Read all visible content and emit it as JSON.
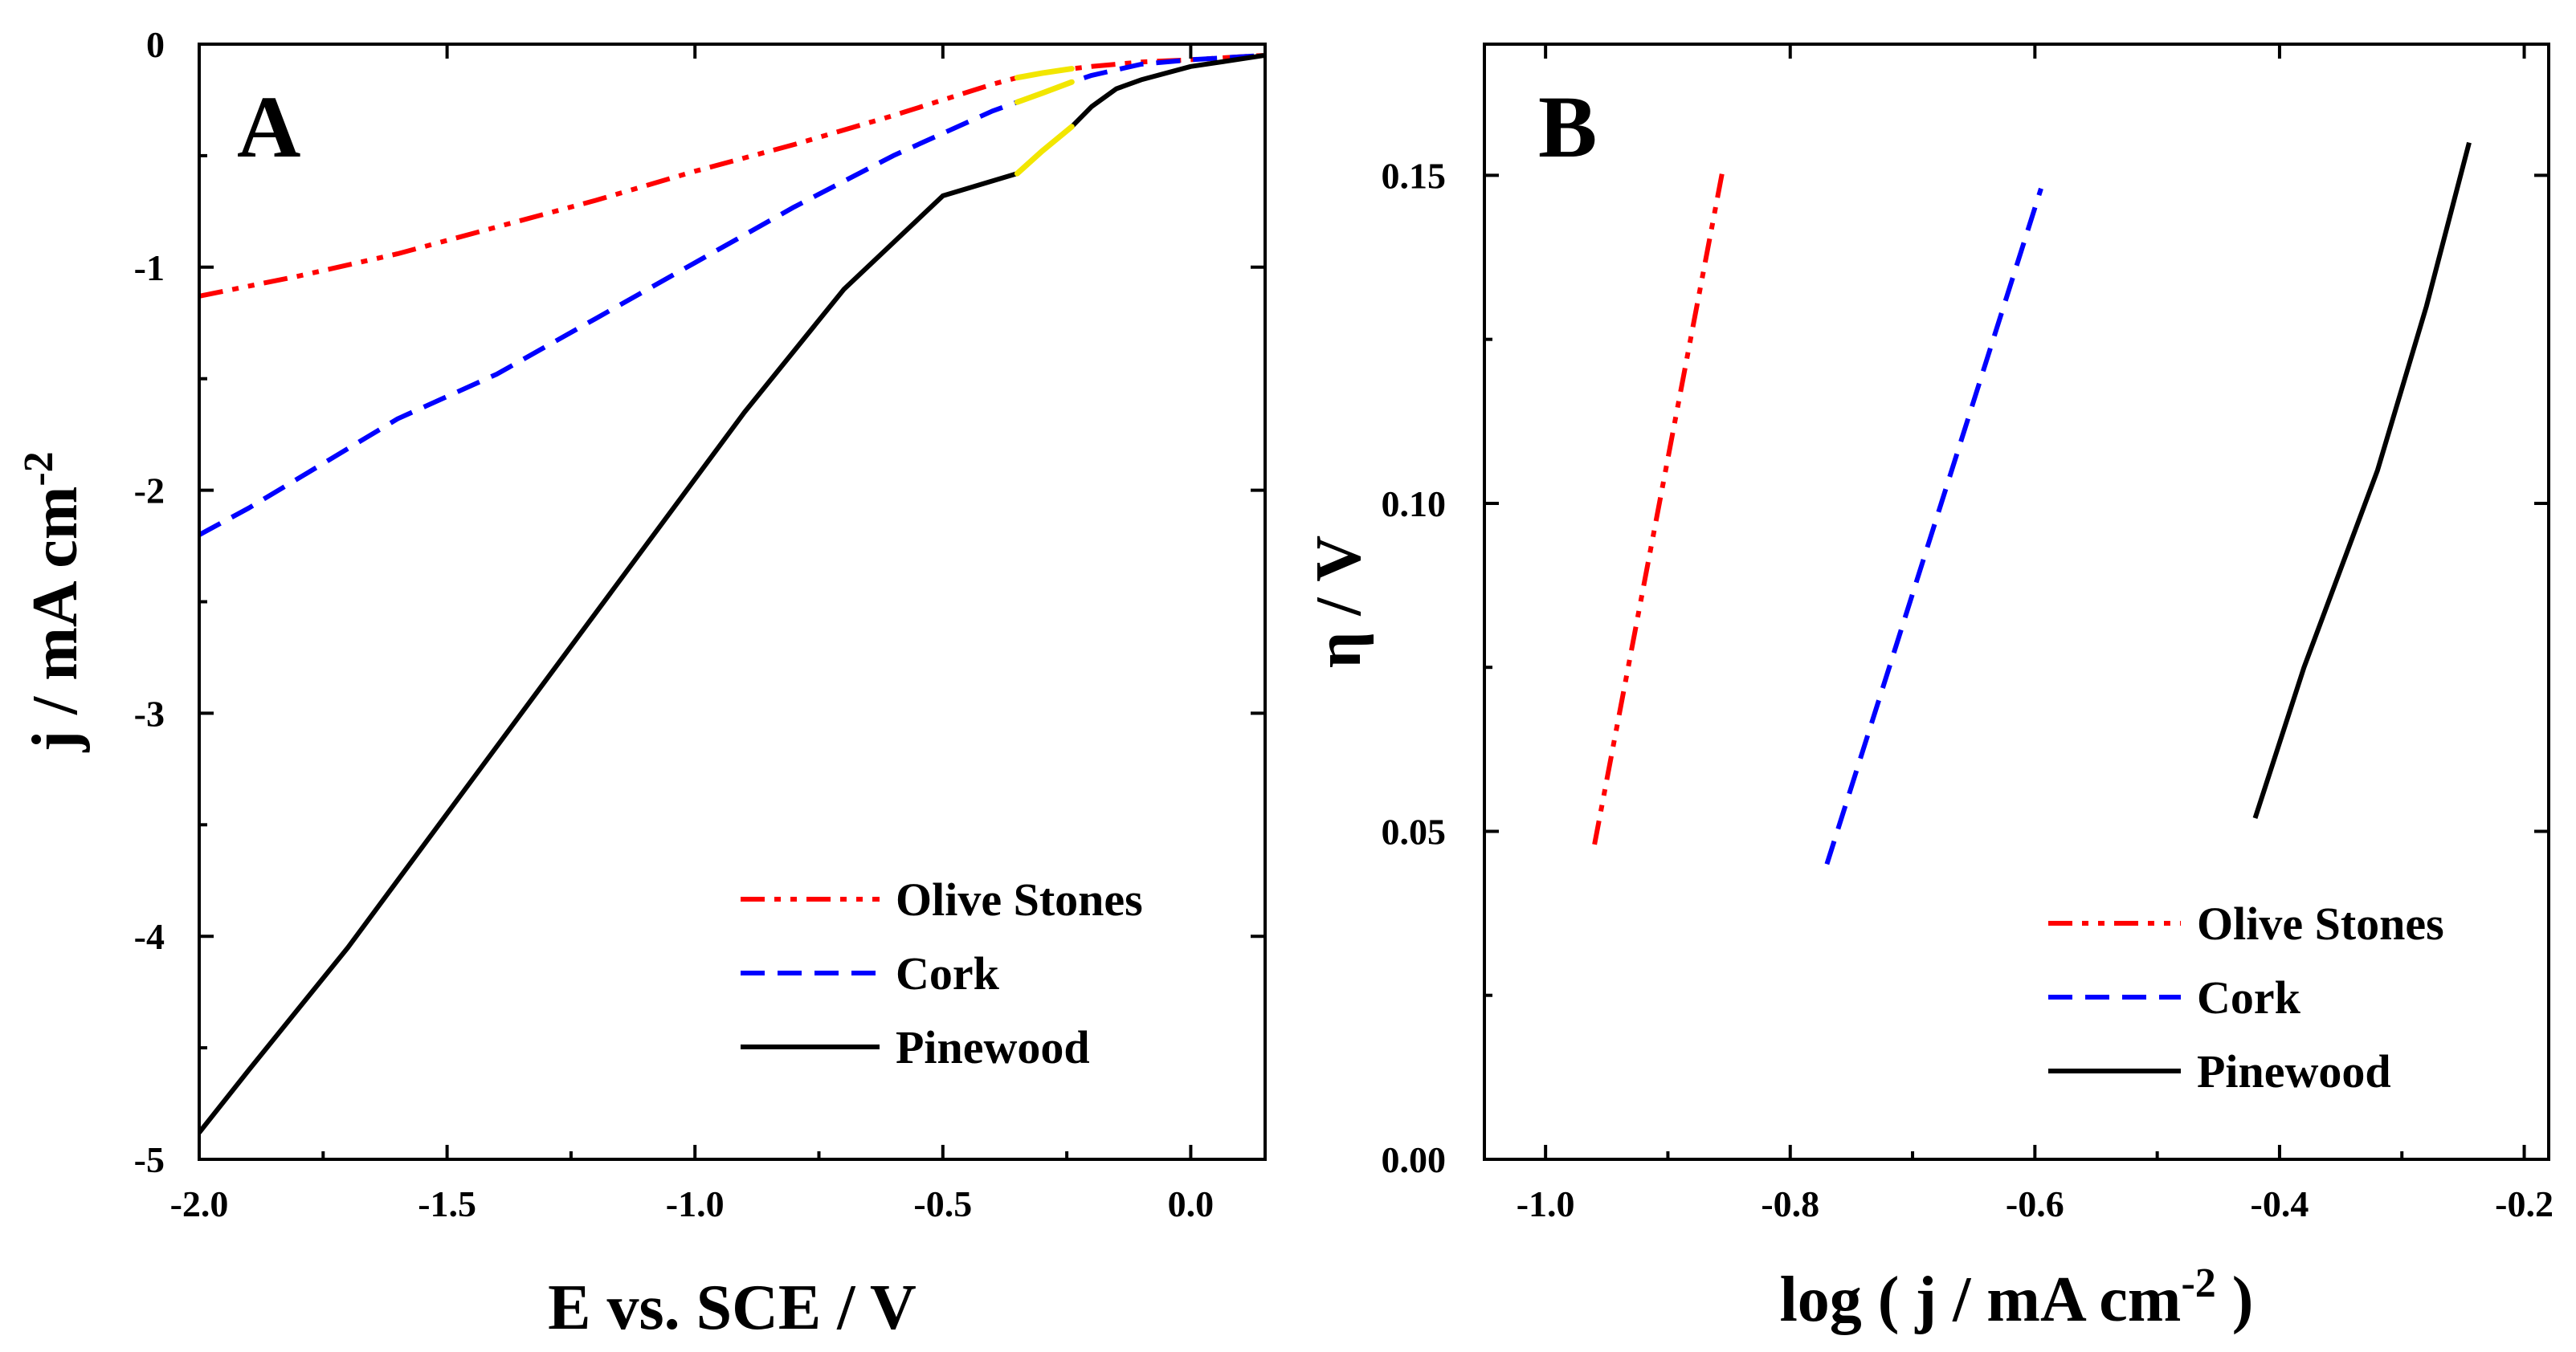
{
  "chart_data": [
    {
      "panel": "A",
      "type": "line",
      "panel_label": "A",
      "xlabel": "E vs. SCE / V",
      "ylabel": {
        "main": "j / mA cm",
        "sup": "-2"
      },
      "xlim": [
        -2.0,
        0.15
      ],
      "ylim": [
        -5,
        0
      ],
      "xticks": [
        -2.0,
        -1.5,
        -1.0,
        -0.5,
        0.0
      ],
      "xtick_labels": [
        "-2.0",
        "-1.5",
        "-1.0",
        "-0.5",
        "0.0"
      ],
      "yticks": [
        0,
        -1,
        -2,
        -3,
        -4,
        -5
      ],
      "ytick_labels": [
        "0",
        "-1",
        "-2",
        "-3",
        "-4",
        "-5"
      ],
      "legend_position": "bottom-right",
      "highlight": {
        "color": "#f2e600",
        "x_range": [
          -0.35,
          -0.24
        ]
      },
      "series": [
        {
          "name": "Olive Stones",
          "color": "#ff0000",
          "style": "dash-dot-dot",
          "x": [
            -2.0,
            -1.8,
            -1.6,
            -1.4,
            -1.2,
            -1.0,
            -0.8,
            -0.6,
            -0.5,
            -0.4,
            -0.35,
            -0.3,
            -0.24,
            -0.2,
            -0.1,
            0.0,
            0.15
          ],
          "y": [
            -1.13,
            -1.04,
            -0.94,
            -0.82,
            -0.7,
            -0.57,
            -0.45,
            -0.32,
            -0.25,
            -0.18,
            -0.15,
            -0.13,
            -0.11,
            -0.1,
            -0.08,
            -0.07,
            -0.05
          ]
        },
        {
          "name": "Cork",
          "color": "#0000ff",
          "style": "dashed",
          "x": [
            -2.0,
            -1.9,
            -1.75,
            -1.6,
            -1.4,
            -1.2,
            -1.0,
            -0.8,
            -0.6,
            -0.5,
            -0.4,
            -0.35,
            -0.3,
            -0.24,
            -0.2,
            -0.1,
            0.0,
            0.15
          ],
          "y": [
            -2.2,
            -2.08,
            -1.88,
            -1.68,
            -1.48,
            -1.23,
            -0.98,
            -0.73,
            -0.5,
            -0.4,
            -0.3,
            -0.26,
            -0.22,
            -0.17,
            -0.14,
            -0.09,
            -0.07,
            -0.05
          ]
        },
        {
          "name": "Pinewood",
          "color": "#000000",
          "style": "solid",
          "x": [
            -2.0,
            -1.9,
            -1.7,
            -1.5,
            -1.3,
            -1.1,
            -0.9,
            -0.7,
            -0.5,
            -0.35,
            -0.3,
            -0.24,
            -0.2,
            -0.15,
            -0.1,
            0.0,
            0.15
          ],
          "y": [
            -4.88,
            -4.6,
            -4.05,
            -3.45,
            -2.85,
            -2.25,
            -1.65,
            -1.1,
            -0.68,
            -0.58,
            -0.48,
            -0.37,
            -0.28,
            -0.2,
            -0.16,
            -0.1,
            -0.05
          ]
        }
      ]
    },
    {
      "panel": "B",
      "type": "line",
      "panel_label": "B",
      "xlabel": {
        "main": "log ( j / mA cm",
        "sup": "-2",
        "end": " )"
      },
      "ylabel": "η / V",
      "xlim": [
        -1.05,
        -0.18
      ],
      "ylim": [
        0.0,
        0.17
      ],
      "xticks": [
        -1.0,
        -0.8,
        -0.6,
        -0.4,
        -0.2
      ],
      "xtick_labels": [
        "-1.0",
        "-0.8",
        "-0.6",
        "-0.4",
        "-0.2"
      ],
      "yticks": [
        0.0,
        0.05,
        0.1,
        0.15
      ],
      "ytick_labels": [
        "0.00",
        "0.05",
        "0.10",
        "0.15"
      ],
      "legend_position": "bottom-right",
      "series": [
        {
          "name": "Olive Stones",
          "color": "#ff0000",
          "style": "dash-dot-dot",
          "x": [
            -0.96,
            -0.855
          ],
          "y": [
            0.048,
            0.151
          ]
        },
        {
          "name": "Cork",
          "color": "#0000ff",
          "style": "dashed",
          "x": [
            -0.77,
            -0.595
          ],
          "y": [
            0.045,
            0.148
          ]
        },
        {
          "name": "Pinewood",
          "color": "#000000",
          "style": "solid",
          "x": [
            -0.42,
            -0.38,
            -0.32,
            -0.28,
            -0.245
          ],
          "y": [
            0.052,
            0.075,
            0.105,
            0.13,
            0.155
          ]
        }
      ]
    }
  ]
}
